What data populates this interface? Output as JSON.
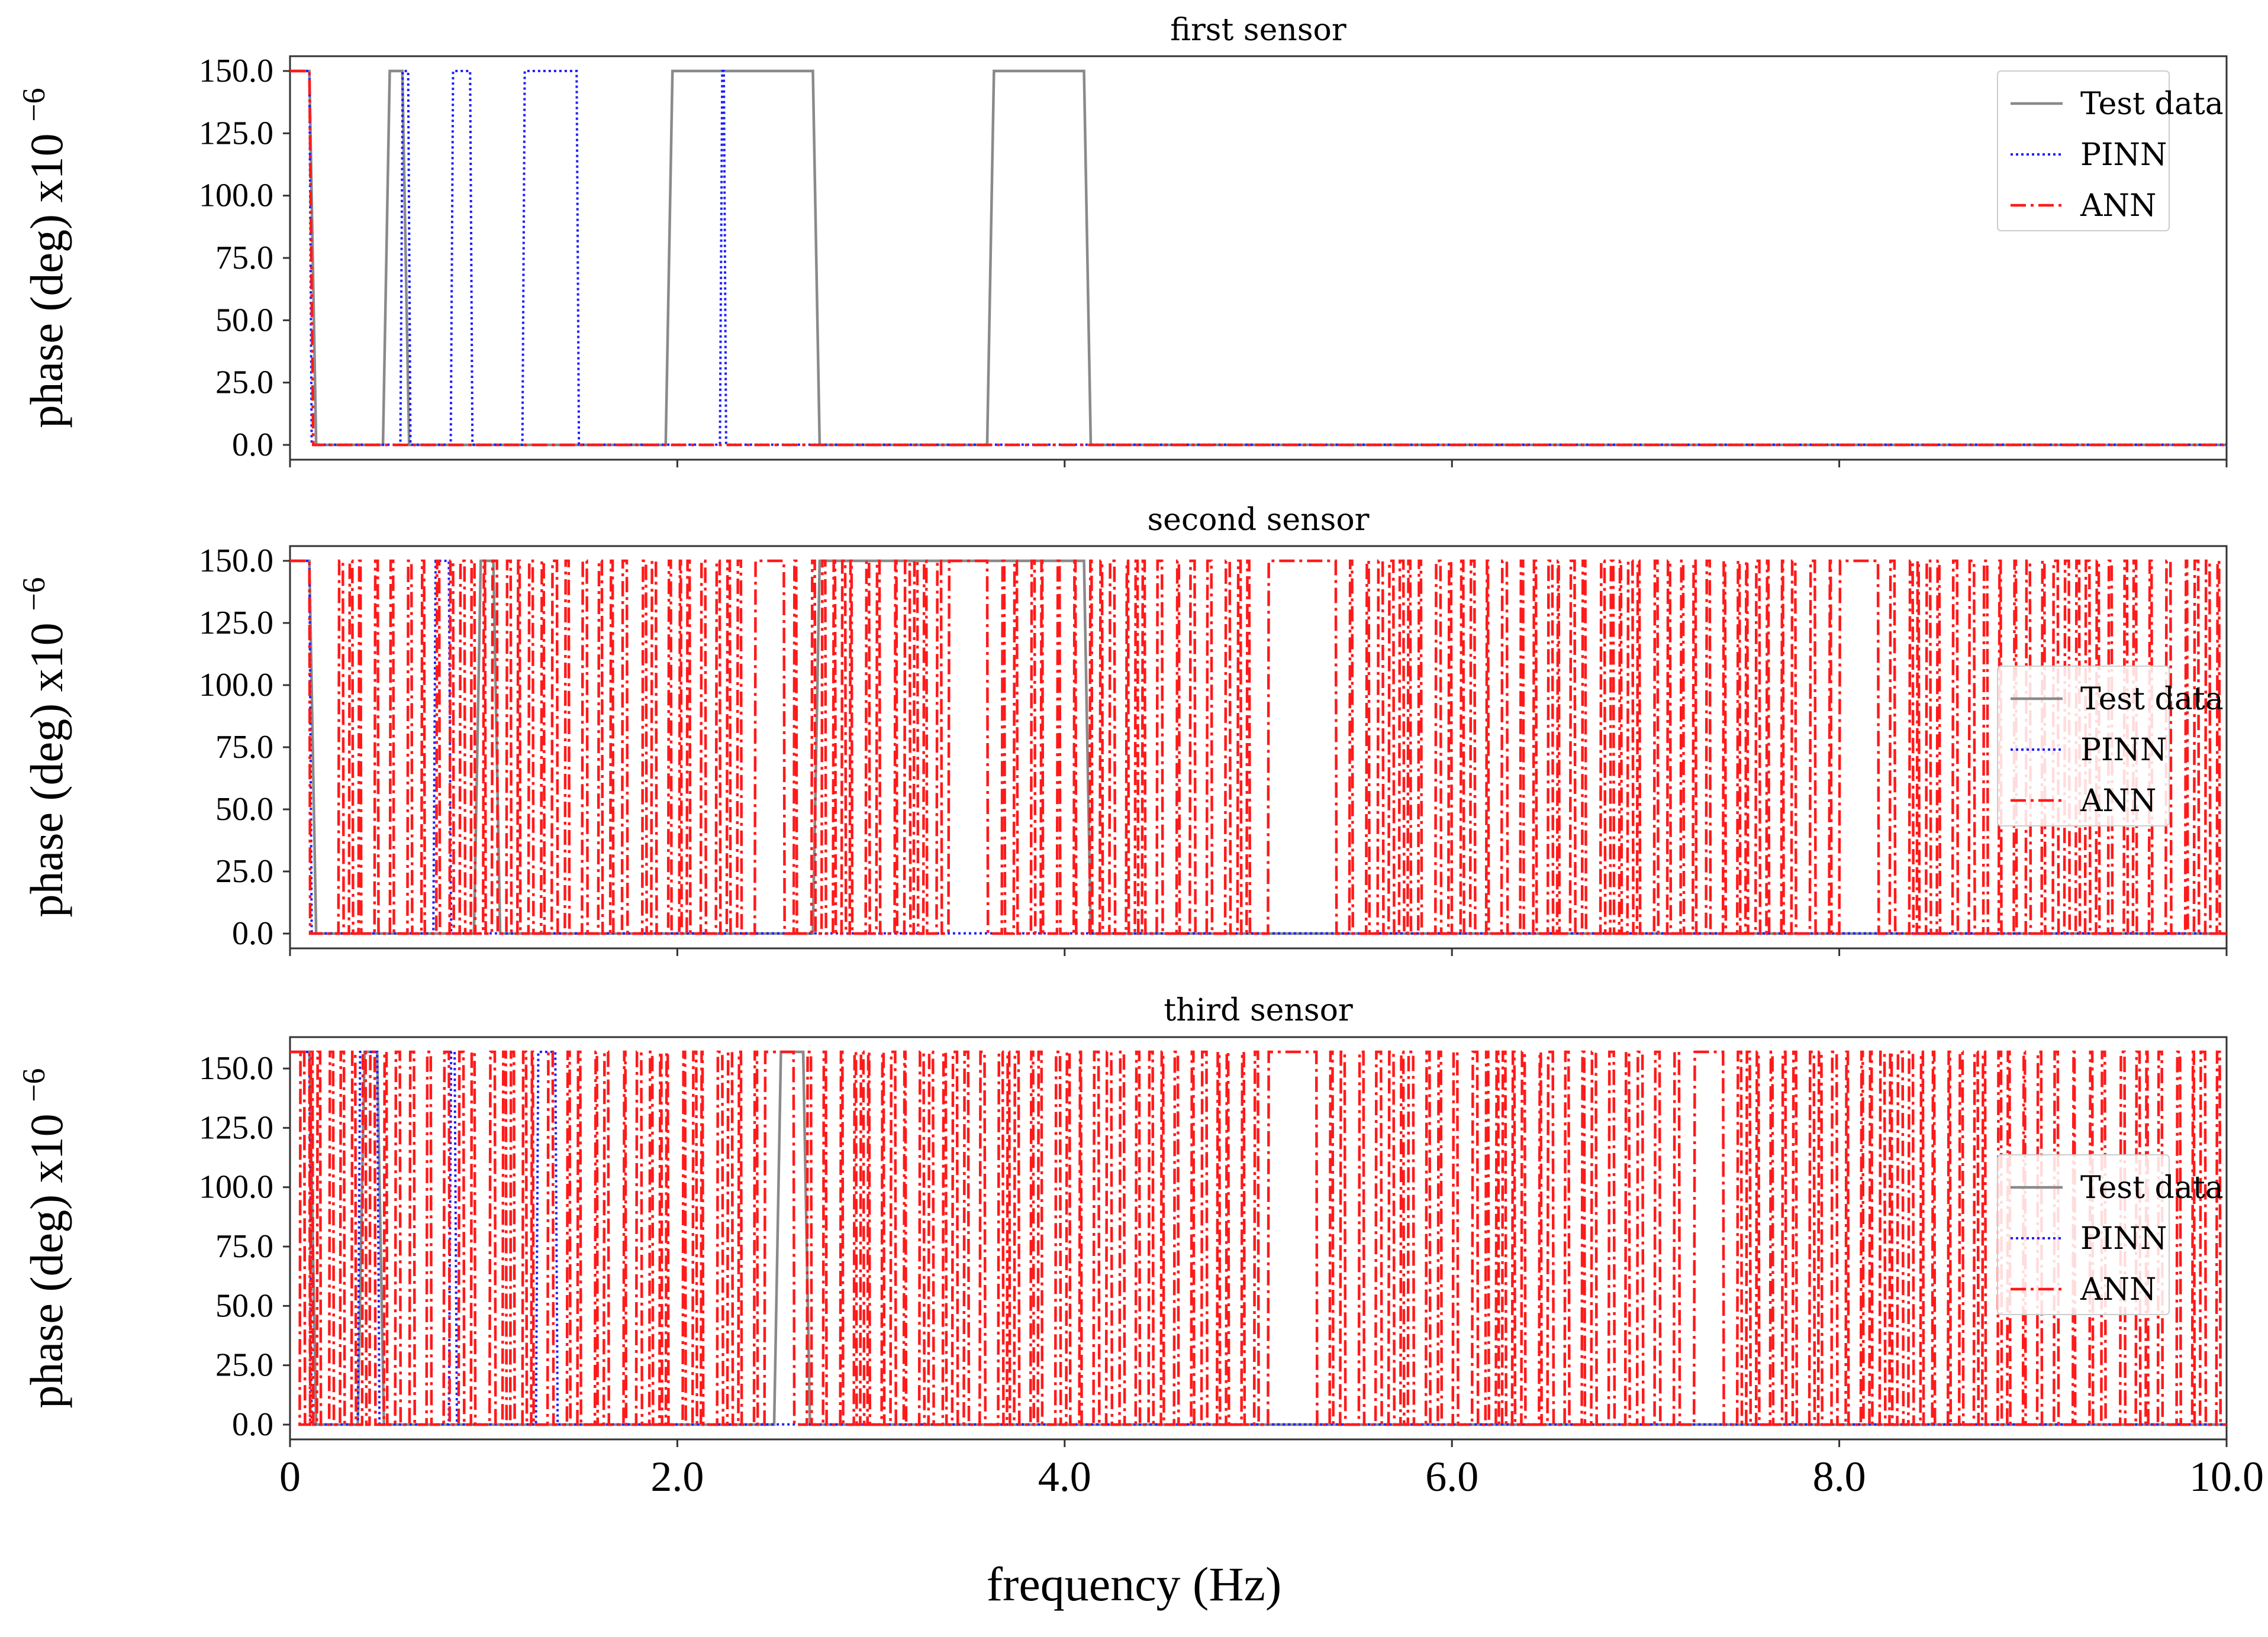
{
  "colors": {
    "test": "#8a8a8a",
    "pinn": "#1f1fff",
    "ann": "#ff1a1a",
    "axis": "#333333"
  },
  "chart_data": [
    {
      "type": "line",
      "title": "first sensor",
      "xlabel": "frequency (Hz)",
      "ylabel": "phase (deg) x10",
      "ylabel_exp": "−6",
      "xlim": [
        0,
        10
      ],
      "ylim": [
        0,
        150
      ],
      "y_ticks": [
        0,
        25,
        50,
        75,
        100,
        125,
        150
      ],
      "y_tick_labels": [
        "0.0",
        "25.0",
        "50.0",
        "75.0",
        "100.0",
        "125.0",
        "150.0"
      ],
      "x_ticks": [
        0,
        2,
        4,
        6,
        8,
        10
      ],
      "legend": [
        "Test data",
        "PINN",
        "ANN"
      ],
      "legend_position": "upper-right",
      "series": [
        {
          "name": "Test data",
          "high_intervals": [
            [
              0,
              0.1
            ],
            [
              0.48,
              0.58
            ],
            [
              1.94,
              2.7
            ],
            [
              3.6,
              4.1
            ]
          ]
        },
        {
          "name": "PINN",
          "high_intervals": [
            [
              0,
              0.1
            ],
            [
              0.57,
              0.61
            ],
            [
              0.83,
              0.93
            ],
            [
              1.2,
              1.48
            ],
            [
              2.22,
              2.24
            ]
          ]
        },
        {
          "name": "ANN",
          "high_intervals": [
            [
              0,
              0.1
            ]
          ]
        }
      ]
    },
    {
      "type": "line",
      "title": "second sensor",
      "xlabel": "frequency (Hz)",
      "ylabel": "phase (deg) x10",
      "ylabel_exp": "−6",
      "xlim": [
        0,
        10
      ],
      "ylim": [
        0,
        150
      ],
      "y_ticks": [
        0,
        25,
        50,
        75,
        100,
        125,
        150
      ],
      "y_tick_labels": [
        "0.0",
        "25.0",
        "50.0",
        "75.0",
        "100.0",
        "125.0",
        "150.0"
      ],
      "x_ticks": [
        0,
        2,
        4,
        6,
        8,
        10
      ],
      "legend": [
        "Test data",
        "PINN",
        "ANN"
      ],
      "legend_position": "center-right",
      "series": [
        {
          "name": "Test data",
          "high_intervals": [
            [
              0,
              0.1
            ],
            [
              0.95,
              1.05
            ],
            [
              2.7,
              4.1
            ]
          ]
        },
        {
          "name": "PINN",
          "high_intervals": [
            [
              0,
              0.1
            ],
            [
              0.74,
              0.82
            ]
          ]
        },
        {
          "name": "ANN",
          "high_intervals": [
            [
              0,
              0.1
            ]
          ],
          "dense_toggling": true,
          "dense_range": [
            0.25,
            10
          ],
          "plateaus": [
            [
              2.4,
              2.55
            ],
            [
              3.4,
              3.6
            ],
            [
              5.05,
              5.4
            ],
            [
              8.0,
              8.2
            ]
          ]
        }
      ]
    },
    {
      "type": "line",
      "title": "third sensor",
      "xlabel": "frequency (Hz)",
      "ylabel": "phase (deg) x10",
      "ylabel_exp": "−6",
      "xlim": [
        0,
        10
      ],
      "ylim": [
        0,
        157
      ],
      "y_ticks": [
        0,
        25,
        50,
        75,
        100,
        125,
        150
      ],
      "y_tick_labels": [
        "0.0",
        "25.0",
        "50.0",
        "75.0",
        "100.0",
        "125.0",
        "150.0"
      ],
      "x_ticks": [
        0,
        2,
        4,
        6,
        8,
        10
      ],
      "legend": [
        "Test data",
        "PINN",
        "ANN"
      ],
      "legend_position": "center-right",
      "series": [
        {
          "name": "Test data",
          "high_intervals": [
            [
              0,
              0.1
            ],
            [
              0.35,
              0.45
            ],
            [
              2.5,
              2.65
            ]
          ]
        },
        {
          "name": "PINN",
          "high_intervals": [
            [
              0,
              0.1
            ],
            [
              0.35,
              0.45
            ],
            [
              0.82,
              0.85
            ],
            [
              1.27,
              1.37
            ]
          ]
        },
        {
          "name": "ANN",
          "high_intervals": [
            [
              0,
              0.1
            ]
          ],
          "dense_toggling": true,
          "dense_range": [
            0.05,
            10
          ],
          "plateaus": [
            [
              2.45,
              2.6
            ],
            [
              5.05,
              5.3
            ],
            [
              7.25,
              7.4
            ]
          ]
        }
      ]
    }
  ],
  "x_tick_labels": [
    "0",
    "2.0",
    "4.0",
    "6.0",
    "8.0",
    "10.0"
  ]
}
